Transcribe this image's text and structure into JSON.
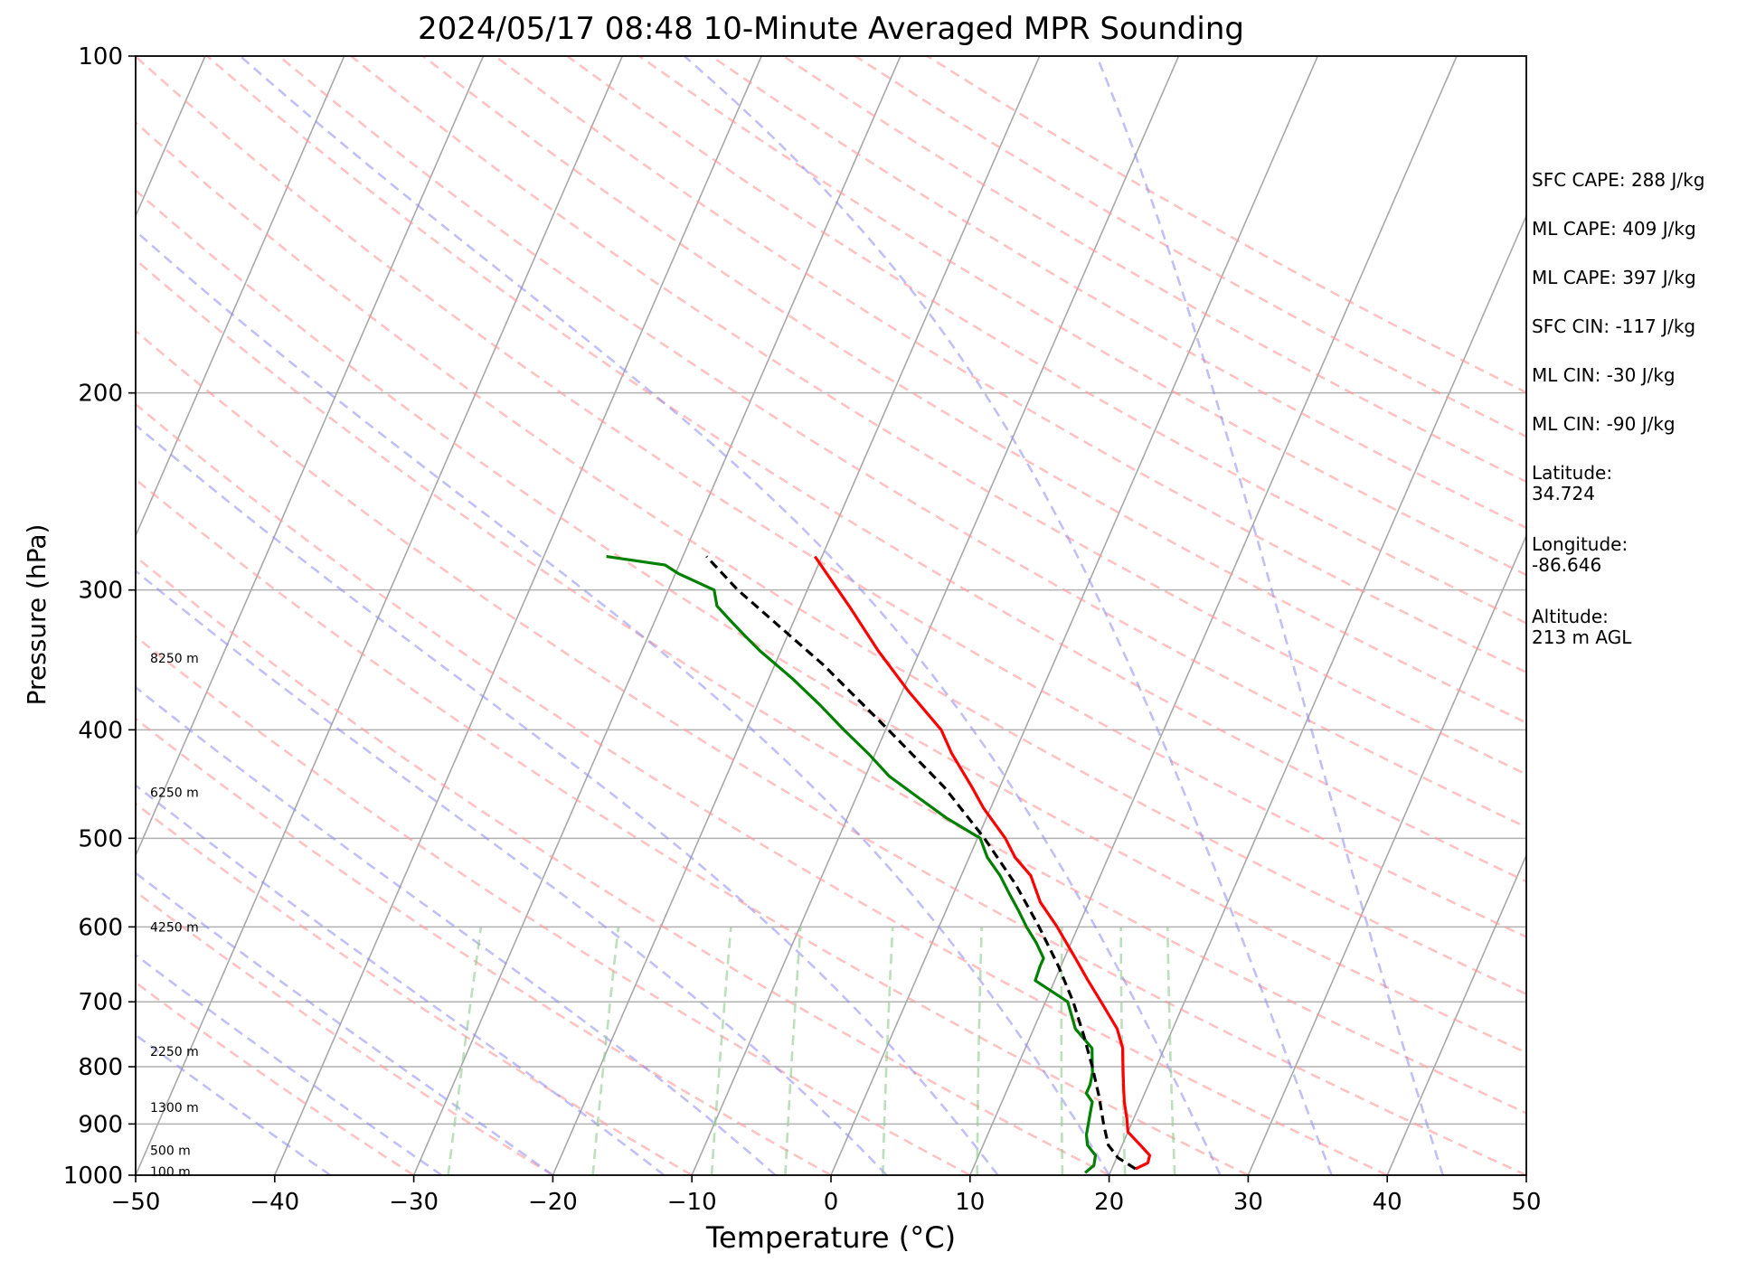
{
  "chart_data": {
    "type": "line",
    "title": "2024/05/17 08:48 10-Minute Averaged MPR Sounding",
    "xlabel": "Temperature (°C)",
    "ylabel": "Pressure (hPa)",
    "xlim": [
      -50,
      50
    ],
    "ylim": [
      1000,
      100
    ],
    "y_scale": "log",
    "grid": true,
    "x_ticks": [
      -50,
      -40,
      -30,
      -20,
      -10,
      0,
      10,
      20,
      30,
      40,
      50
    ],
    "y_ticks": [
      1000,
      900,
      800,
      700,
      600,
      500,
      400,
      300,
      200,
      100
    ],
    "height_labels": [
      {
        "p": 993,
        "text": "100 m"
      },
      {
        "p": 950,
        "text": "500 m"
      },
      {
        "p": 870,
        "text": "1300 m"
      },
      {
        "p": 775,
        "text": "2250 m"
      },
      {
        "p": 600,
        "text": "4250 m"
      },
      {
        "p": 455,
        "text": "6250 m"
      },
      {
        "p": 345,
        "text": "8250 m"
      }
    ],
    "series": [
      {
        "color": "#ff0000",
        "p": [
          987,
          975,
          960,
          940,
          915,
          890,
          860,
          830,
          800,
          770,
          740,
          700,
          670,
          640,
          600,
          570,
          540,
          520,
          500,
          470,
          450,
          420,
          400,
          370,
          340,
          310,
          280
        ],
        "t": [
          21.7,
          22.4,
          22.3,
          21.3,
          20.0,
          19.5,
          18.8,
          18.2,
          17.6,
          17.0,
          16.0,
          14.0,
          12.4,
          10.8,
          8.5,
          6.5,
          5.0,
          3.3,
          2.0,
          -0.5,
          -2.0,
          -4.5,
          -6.0,
          -9.5,
          -13.0,
          -16.5,
          -20.5
        ]
      },
      {
        "color": "#008000",
        "p": [
          995,
          980,
          960,
          940,
          920,
          900,
          880,
          860,
          845,
          830,
          810,
          790,
          770,
          740,
          700,
          670,
          650,
          640,
          620,
          600,
          580,
          560,
          540,
          520,
          500,
          480,
          460,
          440,
          420,
          400,
          380,
          360,
          340,
          330,
          320,
          310,
          300,
          290,
          285,
          280
        ],
        "t": [
          18.2,
          18.6,
          18.4,
          17.5,
          17.1,
          16.9,
          16.7,
          16.5,
          15.8,
          15.8,
          15.6,
          15.2,
          14.8,
          13.0,
          11.6,
          8.6,
          8.5,
          8.5,
          7.5,
          6.3,
          5.2,
          4.0,
          2.8,
          1.3,
          0.2,
          -2.8,
          -5.5,
          -8.3,
          -10.5,
          -13.0,
          -15.5,
          -18.3,
          -21.5,
          -23.0,
          -24.5,
          -26.0,
          -26.7,
          -29.8,
          -31.0,
          -35.5
        ]
      },
      {
        "color": "#000000",
        "dashed": true,
        "p": [
          987,
          965,
          940,
          900,
          850,
          800,
          750,
          700,
          650,
          600,
          550,
          500,
          450,
          400,
          350,
          300,
          280
        ],
        "t": [
          21.7,
          20.1,
          19.0,
          18.0,
          16.8,
          15.4,
          13.8,
          12.0,
          9.8,
          7.2,
          4.2,
          0.5,
          -4.0,
          -9.8,
          -16.5,
          -25.0,
          -28.3
        ]
      }
    ]
  },
  "info": {
    "sfc_cape": "SFC CAPE: 288 J/kg",
    "ml_cape_1": "ML CAPE: 409 J/kg",
    "ml_cape_2": "ML CAPE: 397 J/kg",
    "sfc_cin": "SFC CIN: -117 J/kg",
    "ml_cin_1": "ML CIN: -30 J/kg",
    "ml_cin_2": "ML CIN: -90 J/kg",
    "latitude": "Latitude:\n34.724",
    "longitude": "Longitude:\n-86.646",
    "altitude": "Altitude:\n213 m AGL"
  }
}
